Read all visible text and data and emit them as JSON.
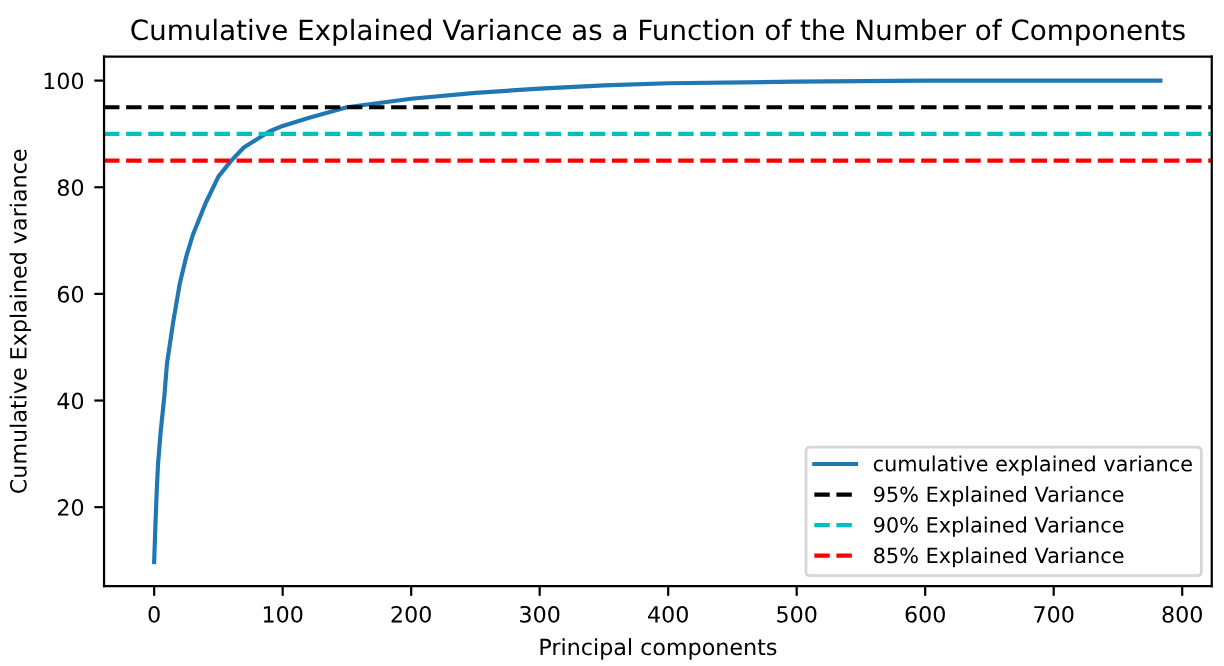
{
  "chart_data": {
    "type": "line",
    "title": "Cumulative Explained Variance as a Function of the Number of Components",
    "xlabel": "Principal components",
    "ylabel": "Cumulative Explained variance",
    "series": [
      {
        "name": "cumulative explained variance",
        "color": "#1f77b4",
        "x": [
          0,
          1,
          2,
          3,
          5,
          8,
          10,
          15,
          20,
          25,
          30,
          40,
          50,
          60,
          70,
          80,
          90,
          100,
          120,
          150,
          200,
          250,
          300,
          350,
          400,
          500,
          600,
          700,
          783
        ],
        "values": [
          9.7,
          16.8,
          23,
          28,
          34,
          41,
          47,
          55,
          62,
          67,
          71,
          77,
          82,
          85,
          87.5,
          89,
          90.5,
          91.5,
          93,
          95,
          96.6,
          97.7,
          98.5,
          99.1,
          99.5,
          99.8,
          100,
          100,
          100
        ]
      }
    ],
    "ref_lines": [
      {
        "axis": "y",
        "value": 95,
        "label": "95% Explained Variance",
        "color": "#000000",
        "line_style": "dashed"
      },
      {
        "axis": "y",
        "value": 90,
        "label": "90% Explained Variance",
        "color": "#00bfbf",
        "line_style": "dashed"
      },
      {
        "axis": "y",
        "value": 85,
        "label": "85% Explained Variance",
        "color": "#ff0000",
        "line_style": "dashed"
      }
    ],
    "xlim": [
      -39,
      823
    ],
    "ylim": [
      5.2,
      104.5
    ],
    "xticks": [
      0,
      100,
      200,
      300,
      400,
      500,
      600,
      700,
      800
    ],
    "yticks": [
      20,
      40,
      60,
      80,
      100
    ],
    "grid": false,
    "legend": "lower right",
    "line_style": "solid",
    "marker": "none"
  }
}
